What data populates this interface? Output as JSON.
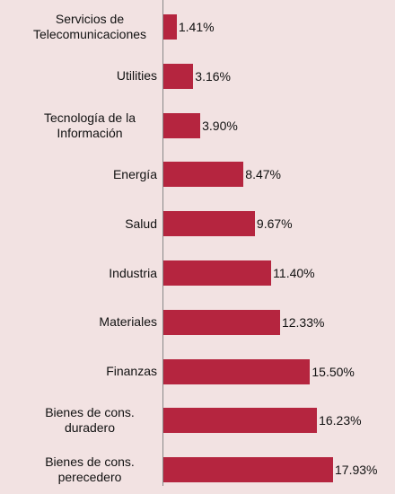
{
  "chart_data": {
    "type": "bar",
    "orientation": "horizontal",
    "categories": [
      "Servicios de Telecomunicaciones",
      "Utilities",
      "Tecnología de la Información",
      "Energía",
      "Salud",
      "Industria",
      "Materiales",
      "Finanzas",
      "Bienes de cons. duradero",
      "Bienes de cons. perecedero"
    ],
    "values": [
      1.41,
      3.16,
      3.9,
      8.47,
      9.67,
      11.4,
      12.33,
      15.5,
      16.23,
      17.93
    ],
    "value_labels": [
      "1.41%",
      "3.16%",
      "3.90%",
      "8.47%",
      "9.67%",
      "11.40%",
      "12.33%",
      "15.50%",
      "16.23%",
      "17.93%"
    ],
    "color": "#b5253f"
  }
}
